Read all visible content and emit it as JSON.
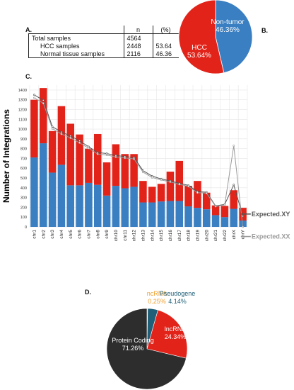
{
  "panel_labels": {
    "a": "A.",
    "b": "B.",
    "c": "C.",
    "d": "D."
  },
  "samples_table": {
    "headers": [
      "",
      "n",
      "(%)"
    ],
    "rows": [
      {
        "label": "Total samples",
        "n": "4564",
        "pct": ""
      },
      {
        "label": "HCC samples",
        "n": "2448",
        "pct": "53.64"
      },
      {
        "label": "Normal tissue samples",
        "n": "2116",
        "pct": "46.36"
      }
    ]
  },
  "colors": {
    "red": "#e2231a",
    "blue": "#3a7fc1",
    "dark": "#2d2d2d",
    "orange": "#f0a030",
    "teal": "#1f5f78",
    "line_dark": "#555555",
    "line_light": "#9a9a9a"
  },
  "chart_data": [
    {
      "type": "pie",
      "id": "B",
      "slices": [
        {
          "label": "Non-tumor",
          "value": 46.36,
          "value_label": "46.36%",
          "color": "#3a7fc1"
        },
        {
          "label": "HCC",
          "value": 53.64,
          "value_label": "53.64%",
          "color": "#e2231a"
        }
      ]
    },
    {
      "type": "bar",
      "id": "C",
      "stacked": true,
      "ylabel": "Number of Integrations",
      "xlabel": "",
      "ylim": [
        0,
        1450
      ],
      "yticks": [
        0,
        100,
        200,
        300,
        400,
        500,
        600,
        700,
        800,
        900,
        1000,
        1100,
        1200,
        1300,
        1400
      ],
      "grid": true,
      "categories": [
        "chr1",
        "chr2",
        "chr3",
        "chr4",
        "chr5",
        "chr6",
        "chr7",
        "chr8",
        "chr9",
        "chr10",
        "chr11",
        "chr12",
        "chr13",
        "chr14",
        "chr15",
        "chr16",
        "chr17",
        "chr18",
        "chr19",
        "chr20",
        "chr21",
        "chr22",
        "chrX",
        "chrY"
      ],
      "series": [
        {
          "values": [
            710,
            855,
            555,
            635,
            425,
            425,
            450,
            430,
            320,
            420,
            395,
            410,
            250,
            250,
            260,
            265,
            265,
            210,
            195,
            180,
            120,
            100,
            185,
            65
          ],
          "color": "#3a7fc1"
        },
        {
          "values": [
            590,
            565,
            425,
            600,
            630,
            520,
            350,
            520,
            340,
            425,
            350,
            335,
            220,
            160,
            180,
            300,
            410,
            210,
            275,
            170,
            100,
            115,
            190,
            130
          ],
          "color": "#e2231a"
        }
      ],
      "expected_lines": [
        {
          "name": "Expected.XY",
          "color": "#555555",
          "values": [
            1350,
            1295,
            1025,
            970,
            930,
            880,
            820,
            760,
            750,
            730,
            720,
            710,
            575,
            520,
            490,
            470,
            445,
            425,
            360,
            355,
            215,
            230,
            430,
            110
          ]
        },
        {
          "name": "Expected.XX",
          "color": "#9a9a9a",
          "values": [
            1320,
            1265,
            1005,
            950,
            910,
            860,
            805,
            745,
            735,
            715,
            705,
            695,
            560,
            505,
            480,
            460,
            435,
            415,
            350,
            345,
            210,
            225,
            830,
            0
          ]
        }
      ]
    },
    {
      "type": "pie",
      "id": "D",
      "slices": [
        {
          "label": "ncRNA",
          "value": 0.25,
          "value_label": "0.25%",
          "color": "#f0a030"
        },
        {
          "label": "Pseudogene",
          "value": 4.14,
          "value_label": "4.14%",
          "color": "#1f5f78"
        },
        {
          "label": "lncRNA",
          "value": 24.34,
          "value_label": "24.34%",
          "color": "#e2231a"
        },
        {
          "label": "Protein Coding",
          "value": 71.26,
          "value_label": "71.26%",
          "color": "#2d2d2d"
        }
      ]
    }
  ]
}
